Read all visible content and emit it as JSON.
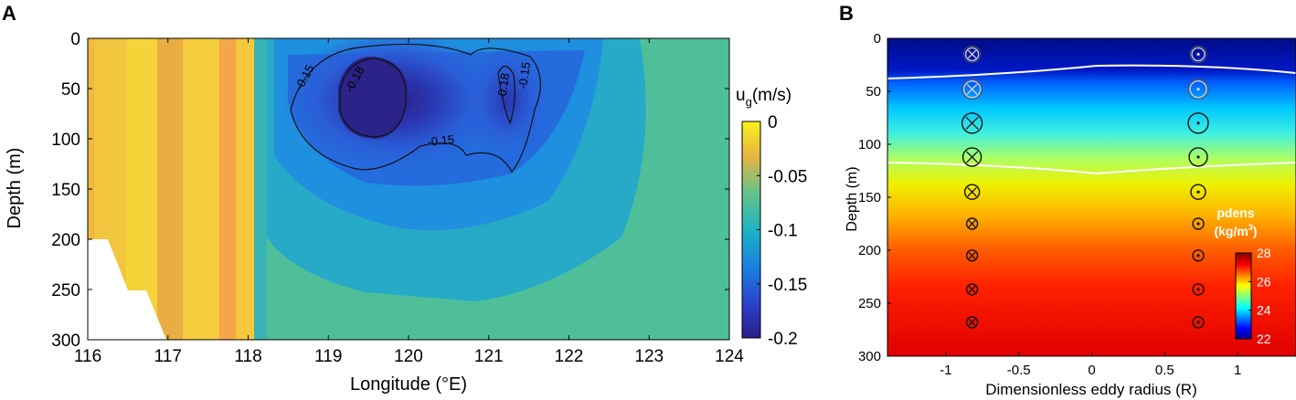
{
  "chart_data": [
    {
      "panel": "A",
      "type": "heatmap",
      "xlabel": "Longitude (°E)",
      "ylabel": "Depth (m)",
      "xlim": [
        116,
        124
      ],
      "ylim": [
        300,
        0
      ],
      "xticks": [
        "116",
        "117",
        "118",
        "119",
        "120",
        "121",
        "122",
        "123",
        "124"
      ],
      "yticks": [
        "0",
        "50",
        "100",
        "150",
        "200",
        "250",
        "300"
      ],
      "colorbar": {
        "label_main": "u",
        "label_sub": "g",
        "label_unit": "(m/s)",
        "ticks": [
          "0",
          "-0.05",
          "-0.1",
          "-0.15",
          "-0.2"
        ],
        "range": [
          -0.2,
          0
        ]
      },
      "contour_labels": [
        "-0.15",
        "-0.18",
        "-0.15",
        "-0.18",
        "-0.15"
      ],
      "grid": "off",
      "colormap": "parula"
    },
    {
      "panel": "B",
      "type": "heatmap",
      "xlabel": "Dimensionless eddy radius (R)",
      "ylabel": "Depth (m)",
      "xlim": [
        -1.4,
        1.4
      ],
      "ylim": [
        300,
        0
      ],
      "xticks": [
        "-1",
        "-0.5",
        "0",
        "0.5",
        "1"
      ],
      "yticks": [
        "0",
        "50",
        "100",
        "150",
        "200",
        "250",
        "300"
      ],
      "colorbar": {
        "label_line1": "pdens",
        "label_line2_main": "(kg/m",
        "label_sup": "3",
        "label_line2_end": ")",
        "ticks": [
          "28",
          "26",
          "24",
          "22"
        ],
        "range": [
          22,
          28
        ]
      },
      "markers": {
        "left_x": -0.82,
        "right_x": 0.73,
        "depths": [
          15,
          48,
          80,
          112,
          145,
          175,
          205,
          237,
          268
        ],
        "left_symbol": "circled-cross",
        "right_symbol": "circled-dot"
      },
      "colormap": "jet"
    }
  ],
  "panel_labels": [
    "A",
    "B"
  ]
}
